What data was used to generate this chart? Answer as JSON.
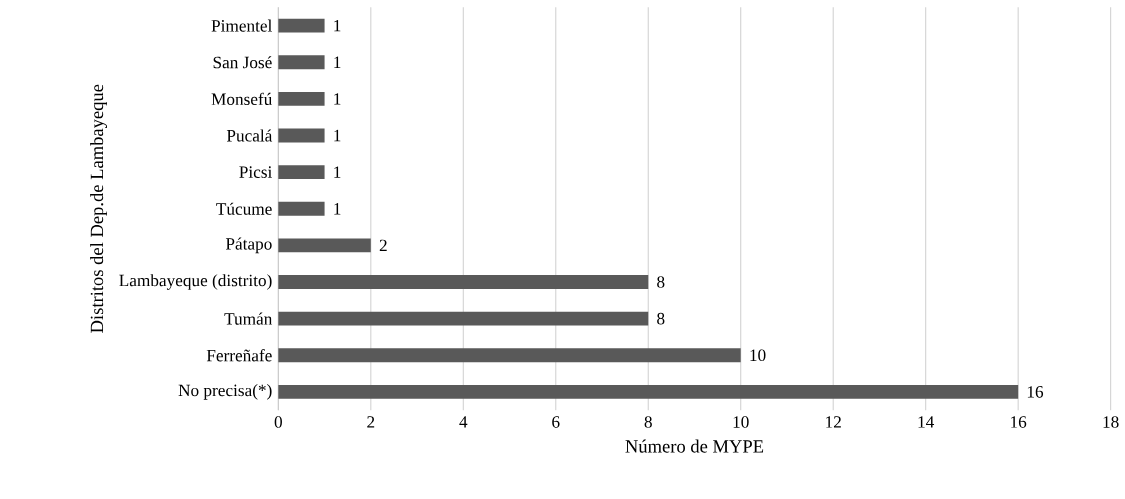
{
  "chart_data": {
    "type": "bar",
    "orientation": "horizontal",
    "xlabel": "Número de MYPE",
    "ylabel": "Distritos del Dep.de Lambayeque",
    "categories": [
      "Pimentel",
      "San José",
      "Monsefú",
      "Pucalá",
      "Picsi",
      "Túcume",
      "Pátapo",
      "Lambayeque (distrito)",
      "Tumán",
      "Ferreñafe",
      "No precisa(*)"
    ],
    "values": [
      1,
      1,
      1,
      1,
      1,
      1,
      2,
      8,
      8,
      10,
      16
    ],
    "color": "#595959",
    "xlim": [
      0,
      18
    ],
    "xticks": [
      0,
      2,
      4,
      6,
      8,
      10,
      12,
      14,
      16,
      18
    ],
    "grid": "x",
    "data_labels": true
  }
}
